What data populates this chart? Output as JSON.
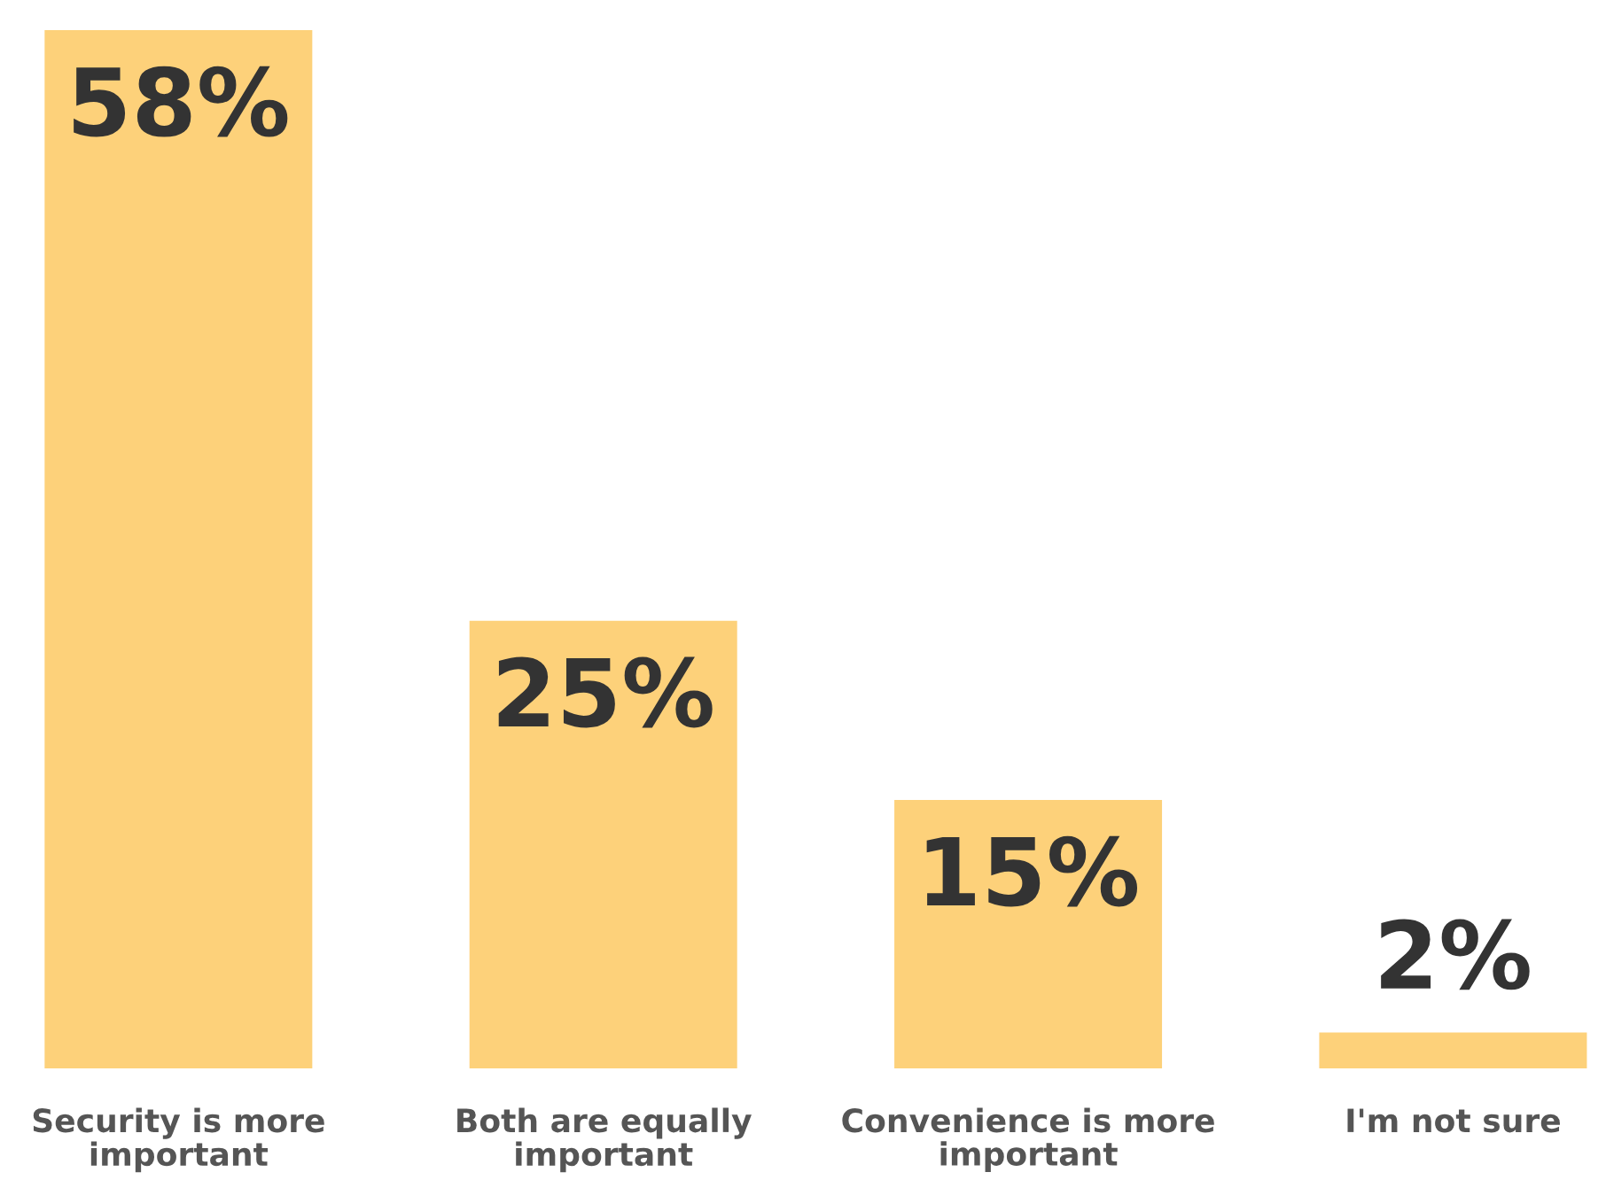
{
  "chart_data": {
    "type": "bar",
    "categories": [
      "Security is more\nimportant",
      "Both are equally\nimportant",
      "Convenience is more\nimportant",
      "I'm not sure"
    ],
    "values": [
      58,
      25,
      15,
      2
    ],
    "value_labels": [
      "58%",
      "25%",
      "15%",
      "2%"
    ],
    "color": "#fdd17a",
    "grid": false,
    "legend": false
  }
}
